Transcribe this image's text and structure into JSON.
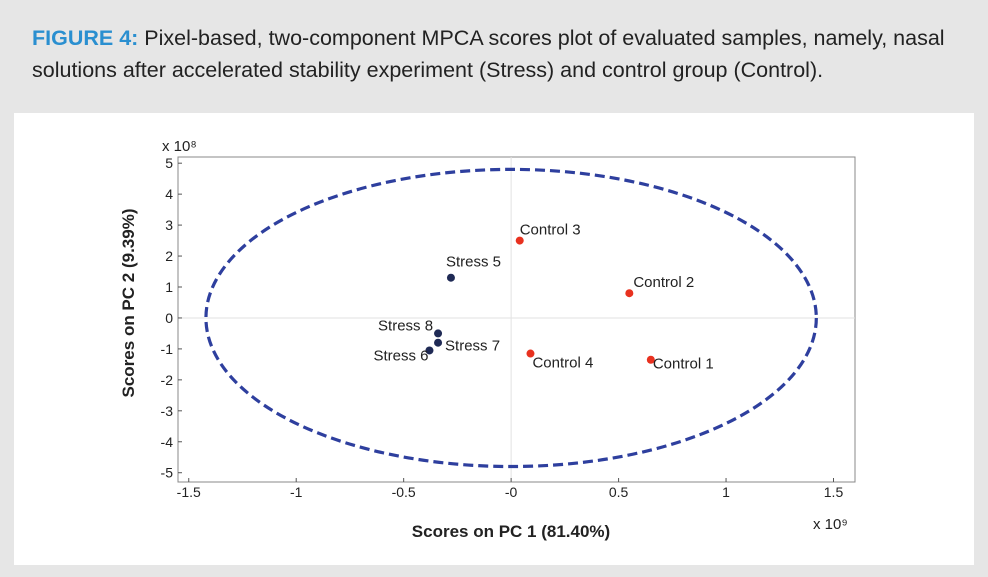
{
  "caption": {
    "label": "FIGURE 4:",
    "text": " Pixel-based, two-component MPCA scores plot of evaluated samples, namely, nasal solutions after accelerated stability experiment (Stress) and control group (Control)."
  },
  "colors": {
    "caption_label": "#2a8fd0",
    "ellipse": "#2e3f9e",
    "stress": "#1f2a55",
    "control": "#e8311f"
  },
  "chart_data": {
    "type": "scatter",
    "xlabel": "Scores on PC 1 (81.40%)",
    "ylabel": "Scores on PC 2 (9.39%)",
    "x_multiplier": "x 10⁹",
    "y_multiplier": "x 10⁸",
    "xlim": [
      -1.55,
      1.6
    ],
    "ylim": [
      -5.3,
      5.2
    ],
    "xticks": [
      -1.5,
      -1,
      -0.5,
      0,
      0.5,
      1,
      1.5
    ],
    "xtick_labels": [
      "-1.5",
      "-1",
      "-0.5",
      "-0",
      "0.5",
      "1",
      "1.5"
    ],
    "yticks": [
      -5,
      -4,
      -3,
      -2,
      -1,
      0,
      1,
      2,
      3,
      4,
      5
    ],
    "ytick_labels": [
      "-5",
      "-4",
      "-3",
      "-2",
      "-1",
      "0",
      "1",
      "2",
      "3",
      "4",
      "5"
    ],
    "ellipse": {
      "center": [
        0,
        0
      ],
      "radius_x": 1.42,
      "radius_y": 4.8
    },
    "series": [
      {
        "name": "Stress",
        "points": [
          {
            "label": "Stress 5",
            "x": -0.28,
            "y": 1.3
          },
          {
            "label": "Stress 8",
            "x": -0.34,
            "y": -0.5
          },
          {
            "label": "Stress 7",
            "x": -0.34,
            "y": -0.8
          },
          {
            "label": "Stress 6",
            "x": -0.38,
            "y": -1.05
          }
        ]
      },
      {
        "name": "Control",
        "points": [
          {
            "label": "Control 3",
            "x": 0.04,
            "y": 2.5
          },
          {
            "label": "Control 2",
            "x": 0.55,
            "y": 0.8
          },
          {
            "label": "Control 4",
            "x": 0.09,
            "y": -1.15
          },
          {
            "label": "Control 1",
            "x": 0.65,
            "y": -1.35
          }
        ]
      }
    ]
  }
}
